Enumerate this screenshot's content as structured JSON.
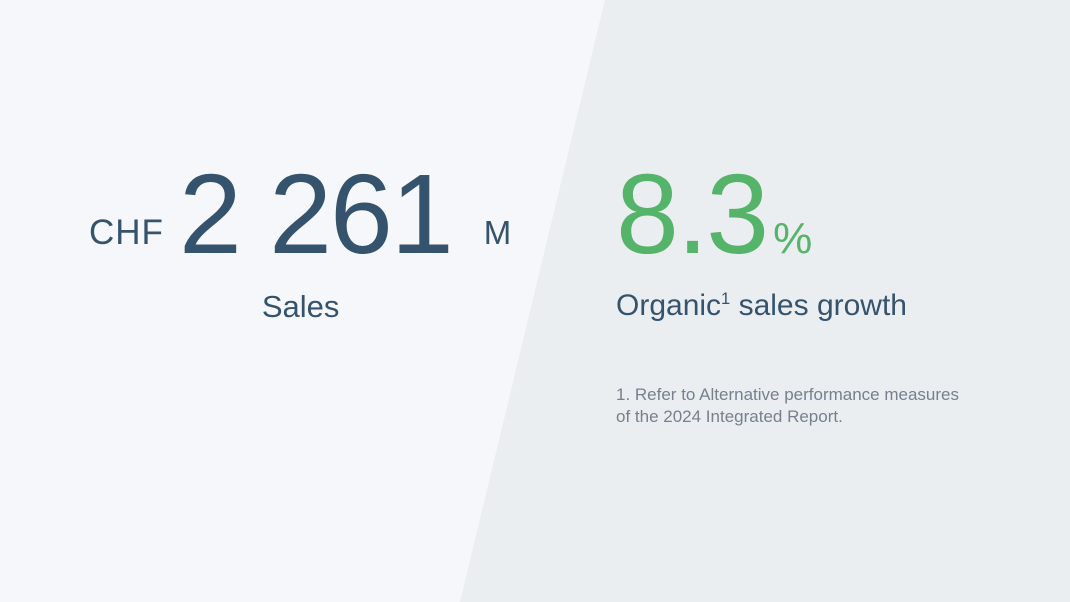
{
  "left_stat": {
    "currency": "CHF",
    "value": "2 261",
    "unit": "M",
    "label": "Sales"
  },
  "right_stat": {
    "value": "8.3",
    "unit": "%",
    "label_prefix": "Organic",
    "label_sup": "1",
    "label_suffix": " sales growth"
  },
  "footnote": {
    "lines": [
      "1. Refer to Alternative performance measures",
      "of the 2024 Integrated Report."
    ]
  },
  "colors": {
    "left_background": "#f5f7fa",
    "right_background": "#eaeef0",
    "primary_text": "#35536c",
    "accent_green": "#55b469",
    "footnote_text": "#76808f"
  }
}
